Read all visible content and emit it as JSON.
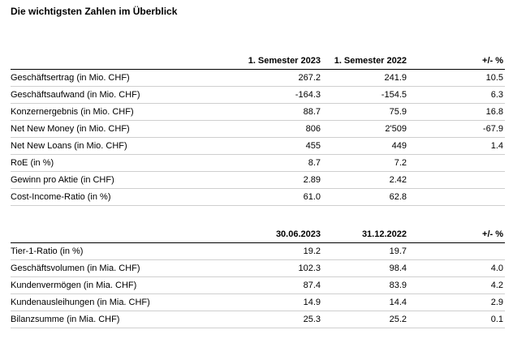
{
  "title": "Die wichtigsten Zahlen im Überblick",
  "table1": {
    "headers": [
      "",
      "1. Semester 2023",
      "1. Semester 2022",
      "+/- %"
    ],
    "rows": [
      [
        "Geschäftsertrag (in Mio. CHF)",
        "267.2",
        "241.9",
        "10.5"
      ],
      [
        "Geschäftsaufwand (in Mio. CHF)",
        "-164.3",
        "-154.5",
        "6.3"
      ],
      [
        "Konzernergebnis (in Mio. CHF)",
        "88.7",
        "75.9",
        "16.8"
      ],
      [
        "Net New Money (in Mio. CHF)",
        "806",
        "2'509",
        "-67.9"
      ],
      [
        "Net New Loans (in Mio. CHF)",
        "455",
        "449",
        "1.4"
      ],
      [
        "RoE (in %)",
        "8.7",
        "7.2",
        ""
      ],
      [
        "Gewinn pro Aktie (in CHF)",
        "2.89",
        "2.42",
        ""
      ],
      [
        "Cost-Income-Ratio (in %)",
        "61.0",
        "62.8",
        ""
      ]
    ]
  },
  "table2": {
    "headers": [
      "",
      "30.06.2023",
      "31.12.2022",
      "+/- %"
    ],
    "rows": [
      [
        "Tier-1-Ratio (in %)",
        "19.2",
        "19.7",
        ""
      ],
      [
        "Geschäftsvolumen (in Mia. CHF)",
        "102.3",
        "98.4",
        "4.0"
      ],
      [
        "Kundenvermögen (in Mia. CHF)",
        "87.4",
        "83.9",
        "4.2"
      ],
      [
        "Kundenausleihungen (in Mia. CHF)",
        "14.9",
        "14.4",
        "2.9"
      ],
      [
        "Bilanzsumme (in Mia. CHF)",
        "25.3",
        "25.2",
        "0.1"
      ]
    ]
  }
}
